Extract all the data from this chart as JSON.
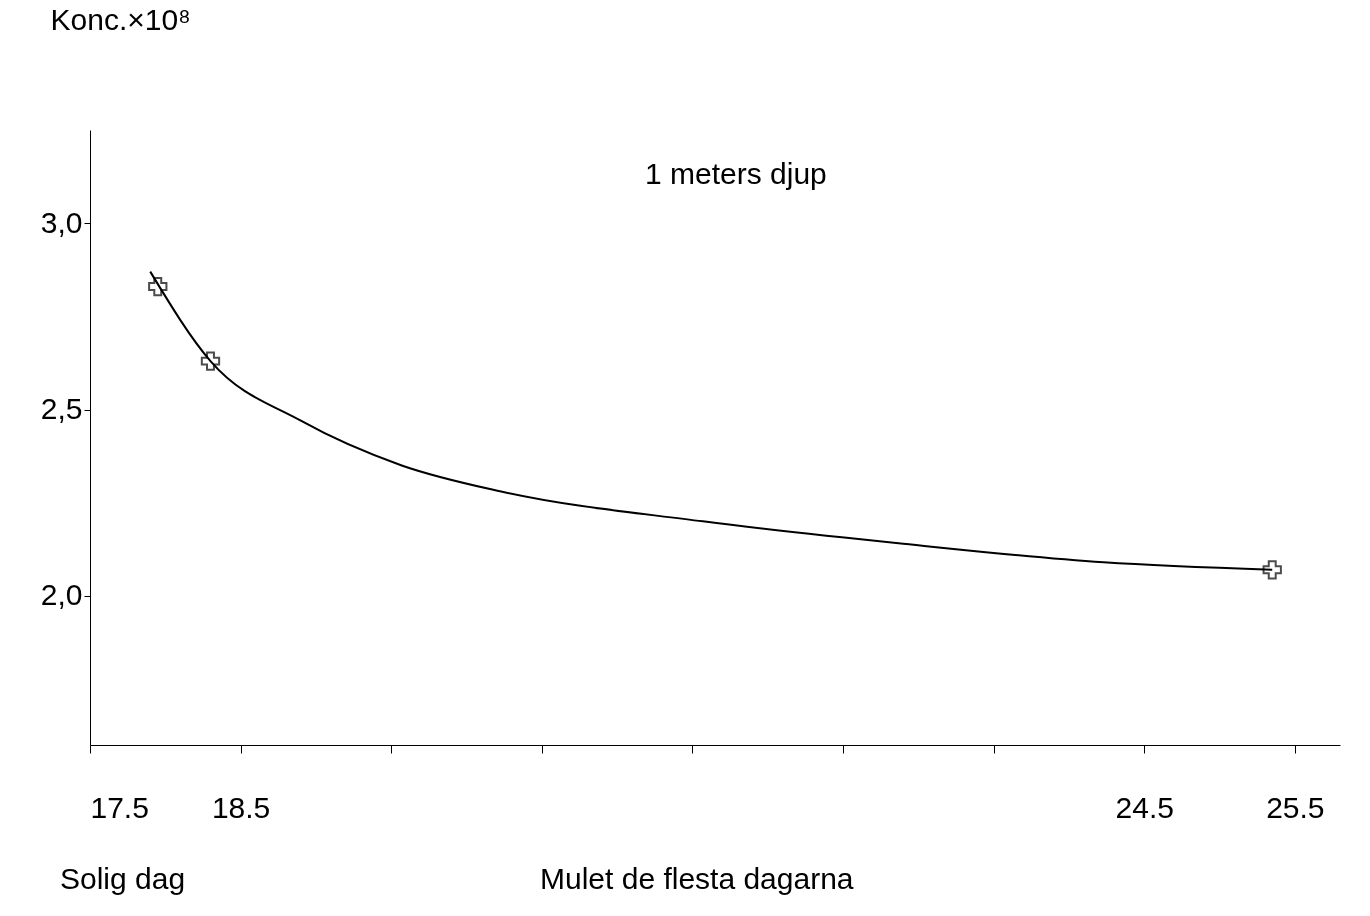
{
  "chart_data": {
    "type": "line",
    "ylabel": "Konc.×10⁸",
    "annotations": [
      "1 meters djup",
      "Solig dag",
      "Mulet de flesta dagarna"
    ],
    "xlim": [
      17.5,
      25.8
    ],
    "ylim": [
      1.6,
      3.25
    ],
    "xticks": [
      17.5,
      18.5,
      {
        "value": 19.5,
        "label": null
      },
      {
        "value": 20.5,
        "label": null
      },
      {
        "value": 21.5,
        "label": null
      },
      {
        "value": 22.5,
        "label": null
      },
      {
        "value": 23.5,
        "label": null
      },
      24.5,
      25.5
    ],
    "yticks": [
      {
        "value": 2.0,
        "label": "2,0"
      },
      {
        "value": 2.5,
        "label": "2,5"
      },
      {
        "value": 3.0,
        "label": "3,0"
      }
    ],
    "grid": false,
    "series": [
      {
        "color": "#000000",
        "marker": "none",
        "line_style": "solid",
        "x": [
          17.9,
          18.3,
          18.9,
          19.57,
          20.23,
          21.57,
          22.9,
          24.23,
          25.35
        ],
        "values": [
          2.87,
          2.63,
          2.47,
          2.35,
          2.28,
          2.2,
          2.14,
          2.09,
          2.07
        ]
      },
      {
        "type": "scatter",
        "color": "#000000",
        "marker": "cross",
        "x": [
          17.95,
          18.3,
          25.35
        ],
        "values": [
          2.83,
          2.63,
          2.07
        ]
      }
    ]
  }
}
